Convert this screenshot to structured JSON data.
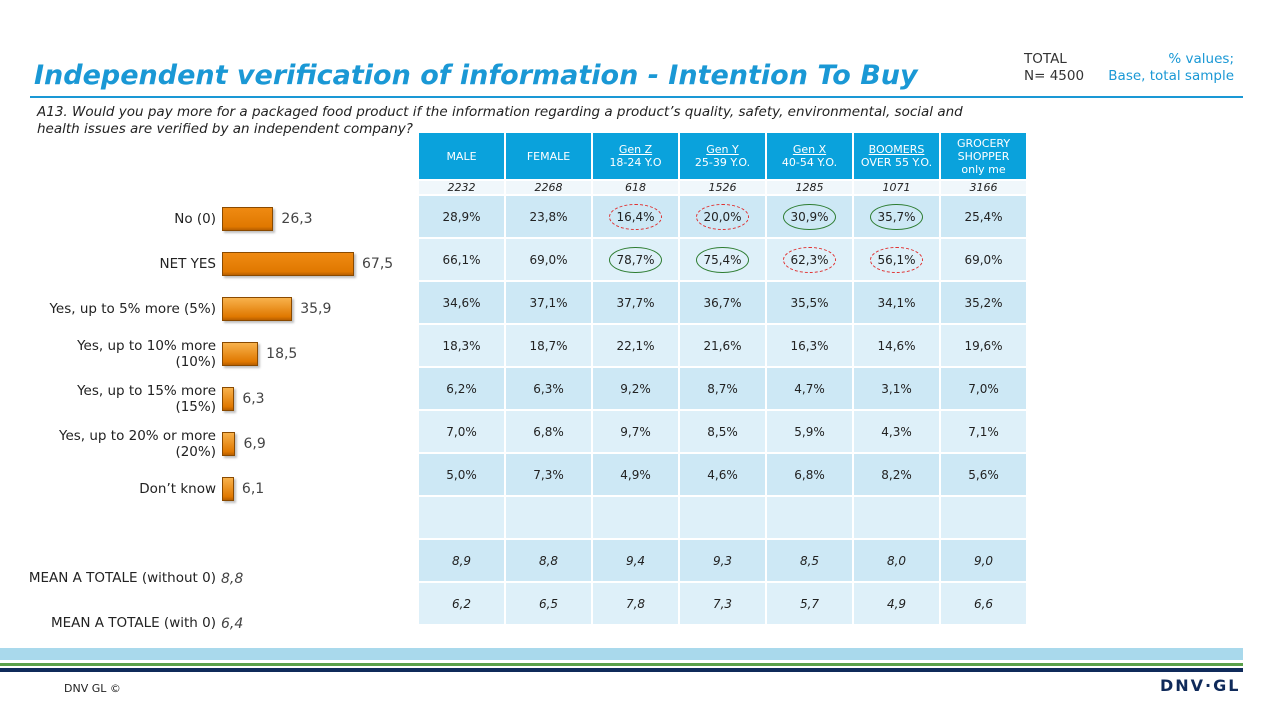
{
  "header": {
    "title": "Independent verification of information - Intention To Buy",
    "total": "TOTAL",
    "sample": "N= 4500",
    "note_1": "% values;",
    "note_2": "Base, total sample"
  },
  "question": "A13. Would you pay more for a packaged food product if the information regarding a product’s quality, safety, environmental, social and health issues are verified by an independent company?",
  "chart_data": {
    "type": "bar",
    "orientation": "horizontal",
    "categories": [
      "No (0)",
      "NET YES",
      "Yes, up to 5% more (5%)",
      "Yes, up to 10% more (10%)",
      "Yes, up to 15% more (15%)",
      "Yes, up to 20% or more (20%)",
      "Don’t know"
    ],
    "values": [
      26.3,
      67.5,
      35.9,
      18.5,
      6.3,
      6.9,
      6.1
    ],
    "value_labels": [
      "26,3",
      "67,5",
      "35,9",
      "18,5",
      "6,3",
      "6,9",
      "6,1"
    ],
    "colors": [
      "#ef8a12",
      "#ef8a12",
      "#f8b24c",
      "#f8b24c",
      "#f8b24c",
      "#f8b24c",
      "#f8b24c"
    ]
  },
  "means": [
    {
      "label": "MEAN A TOTALE (without 0)",
      "value": "8,8"
    },
    {
      "label": "MEAN A TOTALE (with 0)",
      "value": "6,4"
    }
  ],
  "table": {
    "columns": [
      [
        "MALE"
      ],
      [
        "FEMALE"
      ],
      [
        "Gen Z",
        "18-24 Y.O"
      ],
      [
        "Gen Y",
        "25-39 Y.O."
      ],
      [
        "Gen X",
        "40-54 Y.O."
      ],
      [
        "BOOMERS",
        "OVER 55 Y.O."
      ],
      [
        "GROCERY",
        "SHOPPER",
        "only me"
      ]
    ],
    "bases": [
      "2232",
      "2268",
      "618",
      "1526",
      "1285",
      "1071",
      "3166"
    ],
    "rows": [
      [
        "28,9%",
        "23,8%",
        "16,4%",
        "20,0%",
        "30,9%",
        "35,7%",
        "25,4%"
      ],
      [
        "66,1%",
        "69,0%",
        "78,7%",
        "75,4%",
        "62,3%",
        "56,1%",
        "69,0%"
      ],
      [
        "34,6%",
        "37,1%",
        "37,7%",
        "36,7%",
        "35,5%",
        "34,1%",
        "35,2%"
      ],
      [
        "18,3%",
        "18,7%",
        "22,1%",
        "21,6%",
        "16,3%",
        "14,6%",
        "19,6%"
      ],
      [
        "6,2%",
        "6,3%",
        "9,2%",
        "8,7%",
        "4,7%",
        "3,1%",
        "7,0%"
      ],
      [
        "7,0%",
        "6,8%",
        "9,7%",
        "8,5%",
        "5,9%",
        "4,3%",
        "7,1%"
      ],
      [
        "5,0%",
        "7,3%",
        "4,9%",
        "4,6%",
        "6,8%",
        "8,2%",
        "5,6%"
      ]
    ],
    "circles": [
      [
        null,
        null,
        "#e03030",
        "#e03030",
        "#2e7d32",
        "#2e7d32",
        null
      ],
      [
        null,
        null,
        "#2e7d32",
        "#2e7d32",
        "#e03030",
        "#e03030",
        null
      ]
    ],
    "mean_rows": [
      [
        "8,9",
        "8,8",
        "9,4",
        "9,3",
        "8,5",
        "8,0",
        "9,0"
      ],
      [
        "6,2",
        "6,5",
        "7,8",
        "7,3",
        "5,7",
        "4,9",
        "6,6"
      ]
    ]
  },
  "footer": {
    "copyright": "DNV GL ©",
    "logo": "DNV·GL"
  }
}
